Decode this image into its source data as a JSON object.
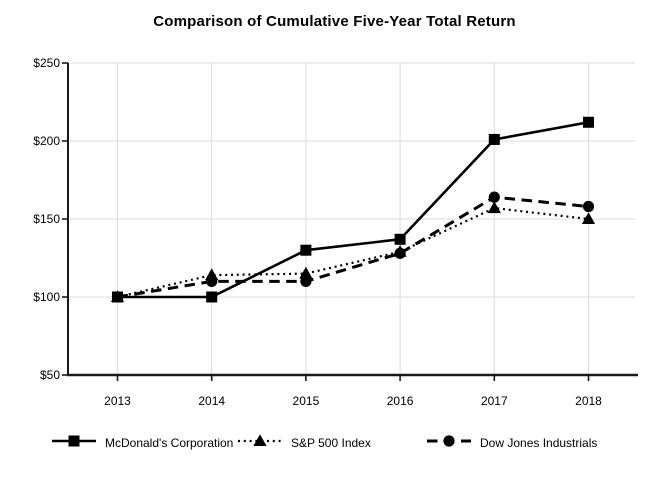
{
  "title": "Comparison of Cumulative Five-Year Total Return",
  "chart_data": {
    "type": "line",
    "title": "Comparison of Cumulative Five-Year Total Return",
    "categories": [
      "2013",
      "2014",
      "2015",
      "2016",
      "2017",
      "2018"
    ],
    "series": [
      {
        "name": "McDonald's Corporation",
        "marker": "square",
        "line": "solid",
        "color": "#000000",
        "values": [
          100,
          100,
          130,
          137,
          201,
          212
        ]
      },
      {
        "name": "S&P 500 Index",
        "marker": "triangle",
        "line": "dotted",
        "color": "#000000",
        "values": [
          100,
          114,
          115,
          129,
          157,
          150
        ]
      },
      {
        "name": "Dow Jones Industrials",
        "marker": "circle",
        "line": "dashed",
        "color": "#000000",
        "values": [
          100,
          110,
          110,
          128,
          164,
          158
        ]
      }
    ],
    "xlabel": "",
    "ylabel": "",
    "ylim": [
      50,
      250
    ],
    "y_ticks": [
      {
        "value": 250,
        "label": "$250"
      },
      {
        "value": 200,
        "label": "$200"
      },
      {
        "value": 150,
        "label": "$150"
      },
      {
        "value": 100,
        "label": "$100"
      },
      {
        "value": 50,
        "label": "$50"
      }
    ],
    "grid": true,
    "legend_position": "bottom",
    "colors": {
      "grid": "#dcdcdc",
      "axis": "#1a1a1a",
      "series": "#000000",
      "background": "#ffffff"
    }
  }
}
